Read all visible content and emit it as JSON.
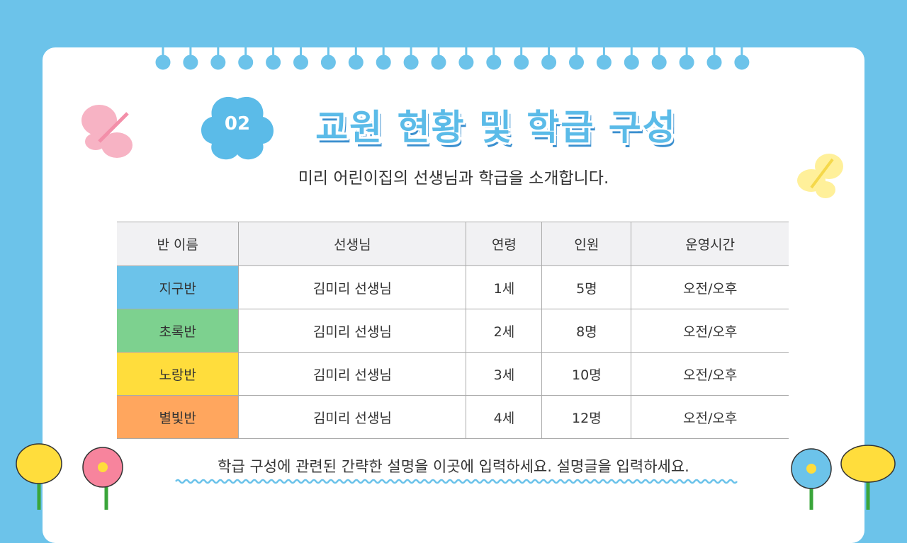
{
  "badge": "02",
  "title": "교원 현황 및 학급 구성",
  "subtitle": "미리 어린이집의 선생님과 학급을 소개합니다.",
  "table": {
    "headers": [
      "반 이름",
      "선생님",
      "연령",
      "인원",
      "운영시간"
    ],
    "rows": [
      [
        "지구반",
        "김미리 선생님",
        "1세",
        "5명",
        "오전/오후"
      ],
      [
        "초록반",
        "김미리 선생님",
        "2세",
        "8명",
        "오전/오후"
      ],
      [
        "노랑반",
        "김미리 선생님",
        "3세",
        "10명",
        "오전/오후"
      ],
      [
        "별빛반",
        "김미리 선생님",
        "4세",
        "12명",
        "오전/오후"
      ]
    ]
  },
  "footer": "학급 구성에 관련된 간략한 설명을 이곳에 입력하세요. 설명글을 입력하세요."
}
